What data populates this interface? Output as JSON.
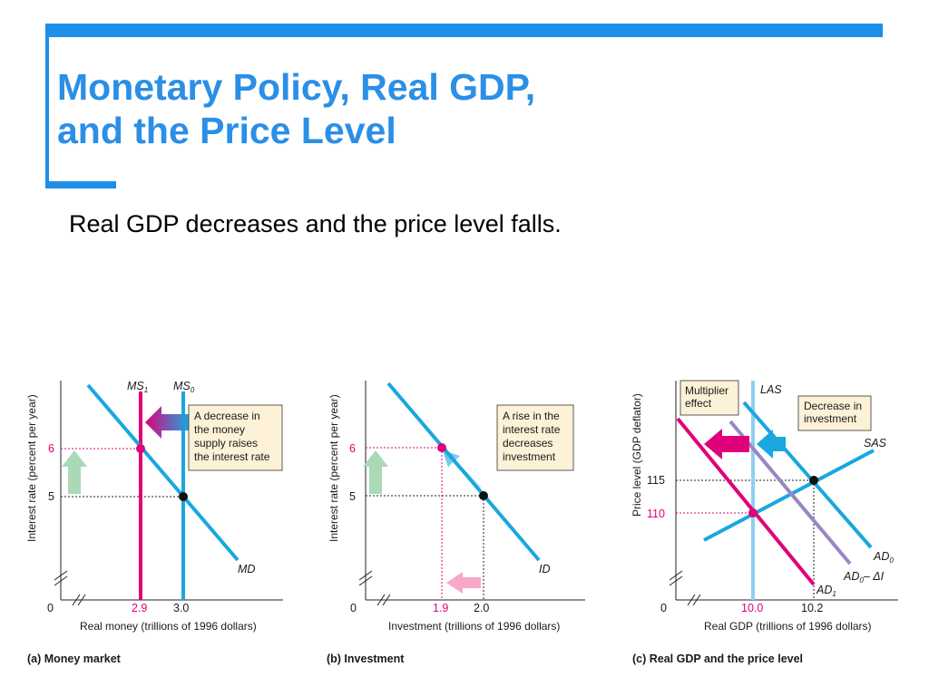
{
  "title": "Monetary Policy, Real GDP,\nand the Price Level",
  "subtitle": "Real GDP decreases and the price level falls.",
  "colors": {
    "accent": "#1e8fe8",
    "curve_blue": "#1aa7e0",
    "curve_magenta": "#e0007a",
    "curve_purple": "#9a86c4",
    "callout_fill": "#fdf1d8",
    "arrow_green": "#a9d9b6"
  },
  "panels": [
    {
      "caption": "(a) Money market",
      "ylabel": "Interest rate (percent per year)",
      "xlabel": "Real money (trillions of 1996 dollars)",
      "origin": "0",
      "y_ticks": [
        "6",
        "5"
      ],
      "x_ticks": [
        "2.9",
        "3.0"
      ],
      "curves": {
        "md": "MD",
        "ms1": "MS",
        "ms1_sub": "1",
        "ms0": "MS",
        "ms0_sub": "0"
      },
      "callout": [
        "A decrease in",
        "the money",
        "supply raises",
        "the interest rate"
      ]
    },
    {
      "caption": "(b) Investment",
      "ylabel": "Interest rate (percent per year)",
      "xlabel": "Investment (trillions of 1996 dollars)",
      "origin": "0",
      "y_ticks": [
        "6",
        "5"
      ],
      "x_ticks": [
        "1.9",
        "2.0"
      ],
      "curves": {
        "id": "ID"
      },
      "callout": [
        "A rise in the",
        "interest rate",
        "decreases",
        "investment"
      ]
    },
    {
      "caption": "(c) Real GDP and the price level",
      "ylabel": "Price level (GDP deflator)",
      "xlabel": "Real GDP (trillions of 1996 dollars)",
      "origin": "0",
      "y_ticks": [
        "115",
        "110"
      ],
      "x_ticks": [
        "10.0",
        "10.2"
      ],
      "curves": {
        "las": "LAS",
        "sas": "SAS",
        "ad0": "AD",
        "ad0_sub": "0",
        "ad0di": "AD",
        "ad0di_sub": "0",
        "ad0di_rest": "– ΔI",
        "ad1": "AD",
        "ad1_sub": "1"
      },
      "callout_multiplier": [
        "Multiplier",
        "effect"
      ],
      "callout_investment": [
        "Decrease in",
        "investment"
      ]
    }
  ]
}
